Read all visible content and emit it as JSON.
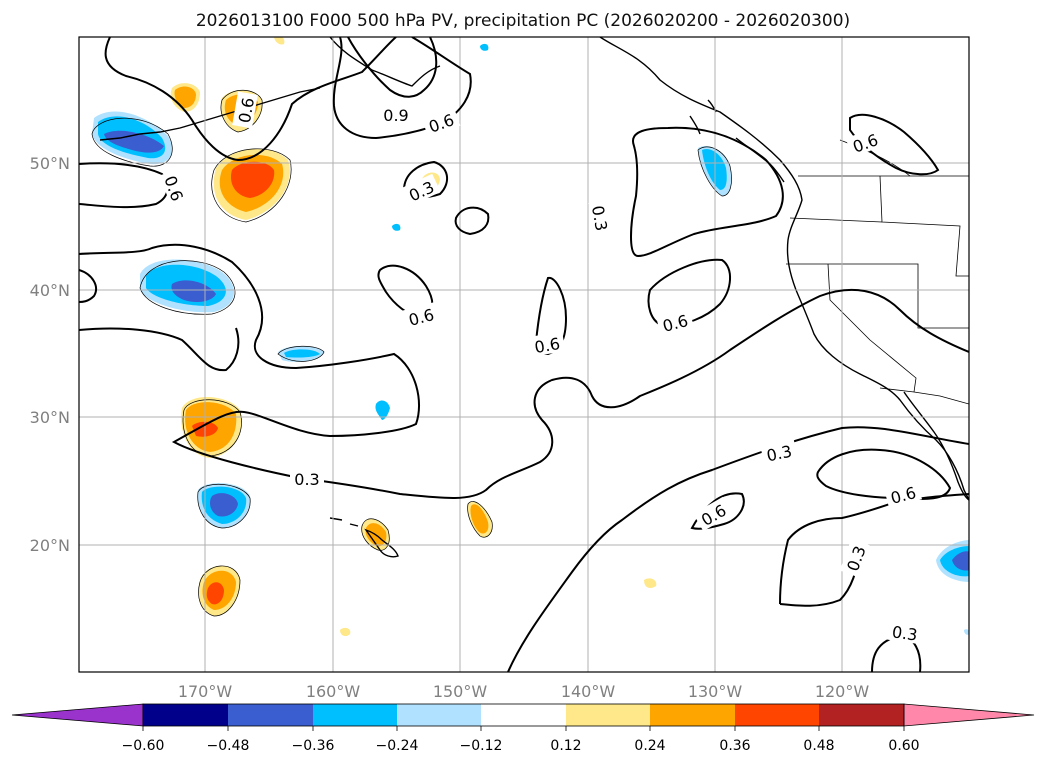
{
  "title": "2026013100 F000 500 hPa PV, precipitation PC (2026020200 - 2026020300)",
  "colors": {
    "ocean": "#ffffff",
    "contour": "#000000",
    "grid": "#b0b0b0",
    "colorbar": [
      "#9933cc",
      "#00008b",
      "#3a5ed0",
      "#00bfff",
      "#b0e2ff",
      "#ffffff",
      "#ffe88a",
      "#ffa500",
      "#ff4500",
      "#b22222",
      "#ff88aa"
    ]
  },
  "lat_labels": [
    "50°N",
    "40°N",
    "30°N",
    "20°N"
  ],
  "lon_labels": [
    "170°W",
    "160°W",
    "150°W",
    "140°W",
    "130°W",
    "120°W"
  ],
  "colorbar_ticks": [
    "−0.60",
    "−0.48",
    "−0.36",
    "−0.24",
    "−0.12",
    "0.12",
    "0.24",
    "0.36",
    "0.48",
    "0.60"
  ],
  "contour_labels": [
    "0.9",
    "0.6",
    "0.6",
    "0.3",
    "0.3",
    "0.6",
    "0.6",
    "0.6",
    "0.6",
    "0.3",
    "0.3",
    "0.6",
    "0.6",
    "0.3",
    "0.3",
    "0.6"
  ]
}
